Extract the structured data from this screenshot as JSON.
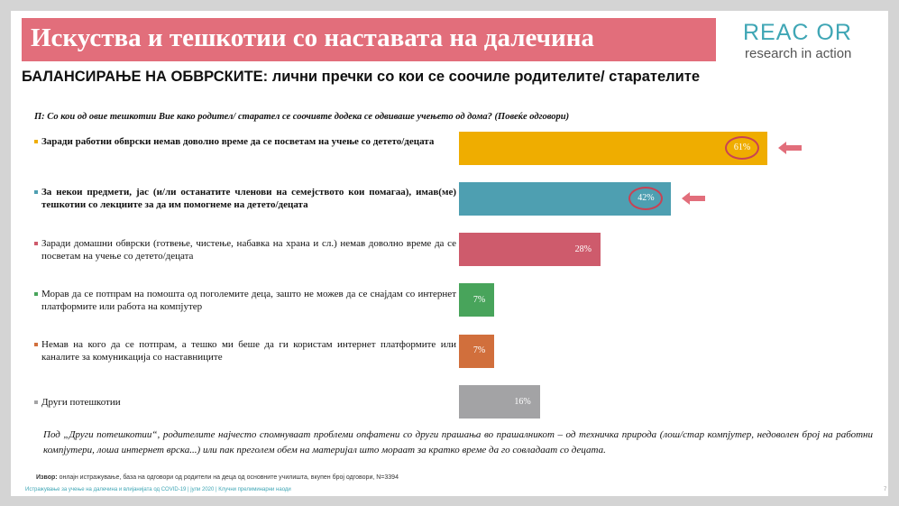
{
  "header": {
    "title": "Искуства и тешкотии со наставата на далечина",
    "logo_top": "REAC OR",
    "logo_bottom": "research in action"
  },
  "subtitle": "БАЛАНСИРАЊЕ НА ОБВРСКИТЕ: лични пречки со кои се соочиле родителите/ старателите",
  "question": "П: Со кои од овие тешкотии Вие како родител/ старател се соочивте додека се одвиваше учењето од дома? (Повеќе одговори)",
  "colors": {
    "title_band": "#e26e7b",
    "logo_teal": "#3fa6b5",
    "highlight": "#c84254"
  },
  "chart_data": {
    "type": "bar",
    "orientation": "horizontal",
    "unit": "%",
    "categories": [
      "Заради работни обврски немав доволно време да се посветам на учење со детето/децата",
      "За некои предмети, јас (и/ли останатите членови на семејството кои помагаа), имав(ме) тешкотии со лекциите за да им помогнеме на детето/децата",
      "Заради домашни обврски (готвење, чистење, набавка на храна и сл.) немав доволно време да се посветам на учење со детето/децата",
      "Морав да се потпрам на помошта од поголемите деца, зашто не можев да се снајдам со интернет платформите или работа на компјутер",
      "Немав на кого да се потпрам, а тешко ми беше да ги користам интернет платформите или каналите за комуникација со наставниците",
      "Други потешкотии"
    ],
    "values": [
      61,
      42,
      28,
      7,
      7,
      16
    ],
    "value_labels": [
      "61%",
      "42%",
      "28%",
      "7%",
      "7%",
      "16%"
    ],
    "bar_colors": [
      "#efad00",
      "#4e9fb1",
      "#ce5b6c",
      "#48a45b",
      "#d16f3c",
      "#a3a3a5"
    ],
    "highlighted": [
      true,
      true,
      false,
      false,
      false,
      false
    ],
    "bold_labels": [
      true,
      true,
      false,
      false,
      false,
      false
    ],
    "xlim": [
      0,
      100
    ]
  },
  "footnote": "Под „Други потешкотии“, родителите најчесто спомнуваат проблеми опфатени со други прашања во прашалникот – од техничка природа (лош/стар компјутер, недоволен број на работни компјутери, лоша интернет врска...) или пак преголем обем на материјал што мораат за кратко време да го совладаат со децата.",
  "source": {
    "label": "Извор:",
    "text": "онлајн истражување, база на одговори од родители на деца од основните училишта, вкупен број одговори, N=3394"
  },
  "footer": "Истражување за учење на далечина и влијанијата од COVID-19 | јули 2020 | Клучни прелиминарни наоди",
  "page_number": "7"
}
